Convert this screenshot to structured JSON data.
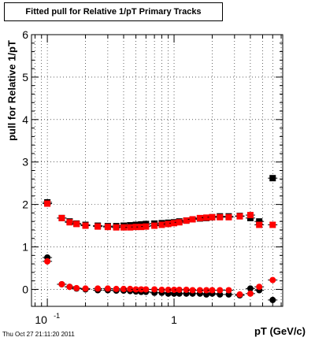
{
  "title": "Fitted pull for Relative 1/pT  Primary Tracks",
  "timestamp": "Thu Oct 27 21:11:20 2011",
  "chart_data": {
    "type": "scatter",
    "xlabel": "pT (GeV/c)",
    "ylabel": "pull for Relative 1/pT",
    "xscale": "log",
    "xlim": [
      0.075,
      7.2
    ],
    "ylim": [
      -0.4,
      6
    ],
    "y_ticks": [
      0,
      1,
      2,
      3,
      4,
      5,
      6
    ],
    "x_ticks": [
      {
        "value": 0.1,
        "base": "10",
        "exp": "-1"
      },
      {
        "value": 1,
        "base": "1",
        "exp": ""
      }
    ],
    "grid": true,
    "series": [
      {
        "color": "#000000",
        "marker": "circle",
        "points": [
          [
            0.1,
            0.75
          ],
          [
            0.13,
            0.12
          ],
          [
            0.15,
            0.06
          ],
          [
            0.17,
            0.02
          ],
          [
            0.2,
            0
          ],
          [
            0.25,
            -0.02
          ],
          [
            0.3,
            -0.02
          ],
          [
            0.35,
            -0.03
          ],
          [
            0.4,
            -0.03
          ],
          [
            0.45,
            -0.04
          ],
          [
            0.5,
            -0.05
          ],
          [
            0.55,
            -0.06
          ],
          [
            0.6,
            -0.06
          ],
          [
            0.7,
            -0.08
          ],
          [
            0.8,
            -0.08
          ],
          [
            0.9,
            -0.1
          ],
          [
            1.0,
            -0.1
          ],
          [
            1.1,
            -0.1
          ],
          [
            1.25,
            -0.1
          ],
          [
            1.4,
            -0.1
          ],
          [
            1.6,
            -0.1
          ],
          [
            1.8,
            -0.12
          ],
          [
            2.0,
            -0.1
          ],
          [
            2.3,
            -0.12
          ],
          [
            2.7,
            -0.12
          ],
          [
            3.3,
            -0.14
          ],
          [
            4.0,
            0.02
          ],
          [
            4.7,
            -0.02
          ],
          [
            6.0,
            -0.25
          ]
        ]
      },
      {
        "color": "#000000",
        "marker": "square",
        "points": [
          [
            0.1,
            2.05
          ],
          [
            0.13,
            1.68
          ],
          [
            0.15,
            1.6
          ],
          [
            0.17,
            1.55
          ],
          [
            0.2,
            1.52
          ],
          [
            0.25,
            1.5
          ],
          [
            0.3,
            1.49
          ],
          [
            0.35,
            1.49
          ],
          [
            0.4,
            1.5
          ],
          [
            0.45,
            1.51
          ],
          [
            0.5,
            1.52
          ],
          [
            0.55,
            1.53
          ],
          [
            0.6,
            1.54
          ],
          [
            0.7,
            1.55
          ],
          [
            0.8,
            1.56
          ],
          [
            0.9,
            1.57
          ],
          [
            1.0,
            1.58
          ],
          [
            1.1,
            1.6
          ],
          [
            1.25,
            1.62
          ],
          [
            1.4,
            1.65
          ],
          [
            1.6,
            1.67
          ],
          [
            1.8,
            1.68
          ],
          [
            2.0,
            1.7
          ],
          [
            2.3,
            1.72
          ],
          [
            2.7,
            1.72
          ],
          [
            3.3,
            1.73
          ],
          [
            4.0,
            1.68
          ],
          [
            4.7,
            1.6
          ],
          [
            6.0,
            2.62
          ]
        ]
      },
      {
        "color": "#ff0000",
        "marker": "circle",
        "points": [
          [
            0.1,
            0.66
          ],
          [
            0.13,
            0.12
          ],
          [
            0.15,
            0.06
          ],
          [
            0.17,
            0.03
          ],
          [
            0.2,
            0.02
          ],
          [
            0.25,
            0.02
          ],
          [
            0.3,
            0.02
          ],
          [
            0.35,
            0.01
          ],
          [
            0.4,
            0.01
          ],
          [
            0.45,
            0.01
          ],
          [
            0.5,
            0
          ],
          [
            0.55,
            0
          ],
          [
            0.6,
            0
          ],
          [
            0.7,
            0
          ],
          [
            0.8,
            -0.01
          ],
          [
            0.9,
            -0.01
          ],
          [
            1.0,
            -0.01
          ],
          [
            1.1,
            -0.01
          ],
          [
            1.25,
            -0.01
          ],
          [
            1.4,
            -0.02
          ],
          [
            1.6,
            -0.02
          ],
          [
            1.8,
            -0.02
          ],
          [
            2.0,
            -0.02
          ],
          [
            2.3,
            -0.02
          ],
          [
            2.7,
            -0.02
          ],
          [
            3.3,
            -0.12
          ],
          [
            4.0,
            -0.1
          ],
          [
            4.7,
            0.06
          ],
          [
            6.0,
            0.22
          ]
        ]
      },
      {
        "color": "#ff0000",
        "marker": "square",
        "points": [
          [
            0.1,
            2.02
          ],
          [
            0.13,
            1.68
          ],
          [
            0.15,
            1.58
          ],
          [
            0.17,
            1.54
          ],
          [
            0.2,
            1.5
          ],
          [
            0.25,
            1.48
          ],
          [
            0.3,
            1.47
          ],
          [
            0.35,
            1.46
          ],
          [
            0.4,
            1.46
          ],
          [
            0.45,
            1.46
          ],
          [
            0.5,
            1.47
          ],
          [
            0.55,
            1.47
          ],
          [
            0.6,
            1.48
          ],
          [
            0.7,
            1.5
          ],
          [
            0.8,
            1.52
          ],
          [
            0.9,
            1.54
          ],
          [
            1.0,
            1.56
          ],
          [
            1.1,
            1.58
          ],
          [
            1.25,
            1.62
          ],
          [
            1.4,
            1.65
          ],
          [
            1.6,
            1.68
          ],
          [
            1.8,
            1.69
          ],
          [
            2.0,
            1.7
          ],
          [
            2.3,
            1.7
          ],
          [
            2.7,
            1.7
          ],
          [
            3.3,
            1.72
          ],
          [
            4.0,
            1.75
          ],
          [
            4.7,
            1.52
          ],
          [
            6.0,
            1.52
          ]
        ]
      }
    ]
  }
}
